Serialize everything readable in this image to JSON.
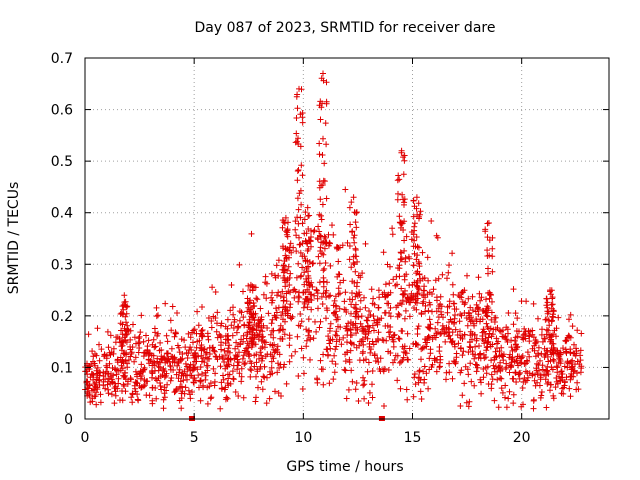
{
  "chart_data": {
    "type": "scatter",
    "title": "Day 087 of 2023, SRMTID for receiver dare",
    "xlabel": "GPS time / hours",
    "ylabel": "SRMTID / TECUs",
    "xlim": [
      0,
      24
    ],
    "ylim": [
      0,
      0.7
    ],
    "xticks": [
      0,
      5,
      10,
      15,
      20
    ],
    "yticks": [
      0,
      0.1,
      0.2,
      0.3,
      0.4,
      0.5,
      0.6,
      0.7
    ],
    "xtick_labels": [
      "0",
      "5",
      "10",
      "15",
      "20"
    ],
    "ytick_labels": [
      "0",
      "0.1",
      "0.2",
      "0.3",
      "0.4",
      "0.5",
      "0.6",
      "0.7"
    ],
    "grid": true,
    "marker": "+",
    "series_color": "#e00000",
    "gap_markers_x": [
      4.9,
      13.6
    ],
    "series": [
      {
        "name": "SRMTID",
        "x_start": 0.0,
        "x_end": 22.75,
        "baseline": [
          [
            0,
            0.08
          ],
          [
            2,
            0.1
          ],
          [
            5,
            0.11
          ],
          [
            7,
            0.13
          ],
          [
            8.5,
            0.15
          ],
          [
            9.5,
            0.22
          ],
          [
            11,
            0.22
          ],
          [
            12,
            0.18
          ],
          [
            13,
            0.14
          ],
          [
            14,
            0.2
          ],
          [
            15,
            0.2
          ],
          [
            16,
            0.18
          ],
          [
            18,
            0.15
          ],
          [
            19,
            0.12
          ],
          [
            21,
            0.11
          ],
          [
            22.75,
            0.1
          ]
        ],
        "peaks": [
          {
            "x": 9.8,
            "y": 0.64
          },
          {
            "x": 10.9,
            "y": 0.67
          },
          {
            "x": 14.5,
            "y": 0.52
          },
          {
            "x": 15.2,
            "y": 0.43
          },
          {
            "x": 9.2,
            "y": 0.39
          },
          {
            "x": 10.2,
            "y": 0.41
          },
          {
            "x": 12.3,
            "y": 0.43
          },
          {
            "x": 18.5,
            "y": 0.38
          },
          {
            "x": 1.8,
            "y": 0.24
          },
          {
            "x": 7.6,
            "y": 0.26
          },
          {
            "x": 21.3,
            "y": 0.25
          }
        ]
      }
    ]
  }
}
